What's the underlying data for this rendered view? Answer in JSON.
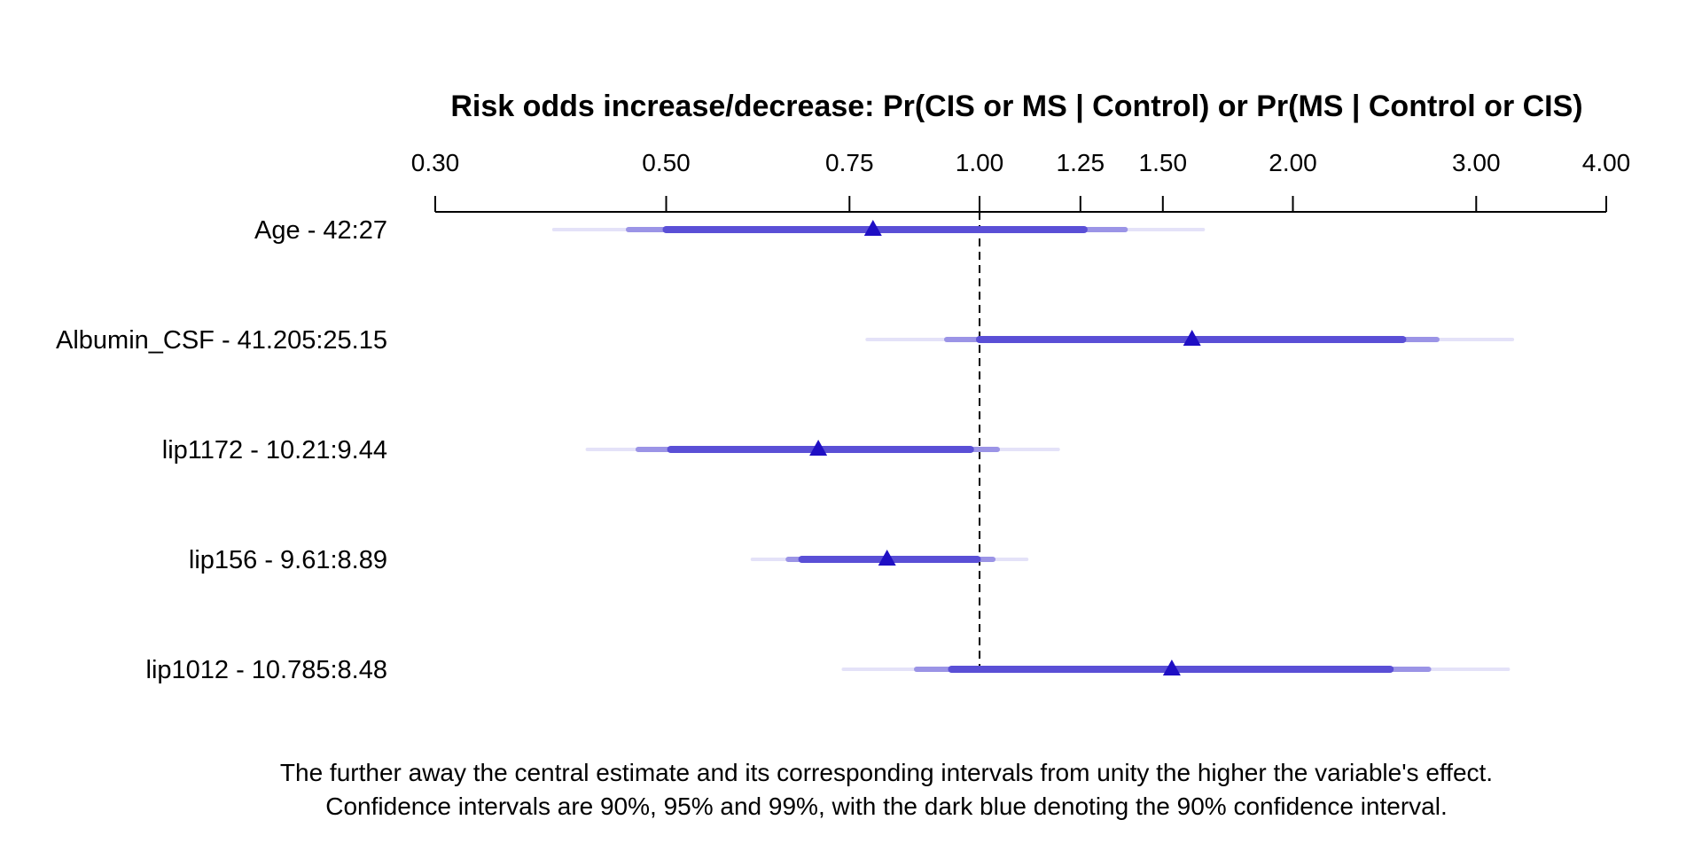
{
  "chart_data": {
    "type": "forest",
    "title": "Risk odds increase/decrease: Pr(CIS or MS | Control) or Pr(MS | Control or CIS)",
    "x_scale": "log",
    "xlim": [
      0.3,
      4.0
    ],
    "ticks": [
      0.3,
      0.5,
      0.75,
      1.0,
      1.25,
      1.5,
      2.0,
      3.0,
      4.0
    ],
    "tick_labels": [
      "0.30",
      "0.50",
      "0.75",
      "1.00",
      "1.25",
      "1.50",
      "2.00",
      "3.00",
      "4.00"
    ],
    "reference_line": 1.0,
    "colors": {
      "ci90": "#5a4fd6",
      "ci95": "#9b94e6",
      "ci99": "#e4e2f8",
      "estimate": "#1f0fc4"
    },
    "rows": [
      {
        "label": "Age - 42:27",
        "estimate": 0.79,
        "ci90": [
          0.5,
          1.26
        ],
        "ci95": [
          0.46,
          1.38
        ],
        "ci99": [
          0.39,
          1.64
        ]
      },
      {
        "label": "Albumin_CSF - 41.205:25.15",
        "estimate": 1.6,
        "ci90": [
          1.0,
          2.55
        ],
        "ci95": [
          0.93,
          2.75
        ],
        "ci99": [
          0.78,
          3.25
        ]
      },
      {
        "label": "lip1172 - 10.21:9.44",
        "estimate": 0.7,
        "ci90": [
          0.505,
          0.98
        ],
        "ci95": [
          0.47,
          1.04
        ],
        "ci99": [
          0.42,
          1.19
        ]
      },
      {
        "label": "lip156 - 9.61:8.89",
        "estimate": 0.815,
        "ci90": [
          0.675,
          0.995
        ],
        "ci95": [
          0.655,
          1.03
        ],
        "ci99": [
          0.605,
          1.11
        ]
      },
      {
        "label": "lip1012 - 10.785:8.48",
        "estimate": 1.53,
        "ci90": [
          0.94,
          2.48
        ],
        "ci95": [
          0.87,
          2.7
        ],
        "ci99": [
          0.74,
          3.22
        ]
      }
    ],
    "caption_lines": [
      "The further away the central estimate and its corresponding intervals from unity the higher the variable's effect.",
      "Confidence intervals are 90%, 95% and 99%, with the dark blue denoting the 90% confidence interval."
    ]
  }
}
